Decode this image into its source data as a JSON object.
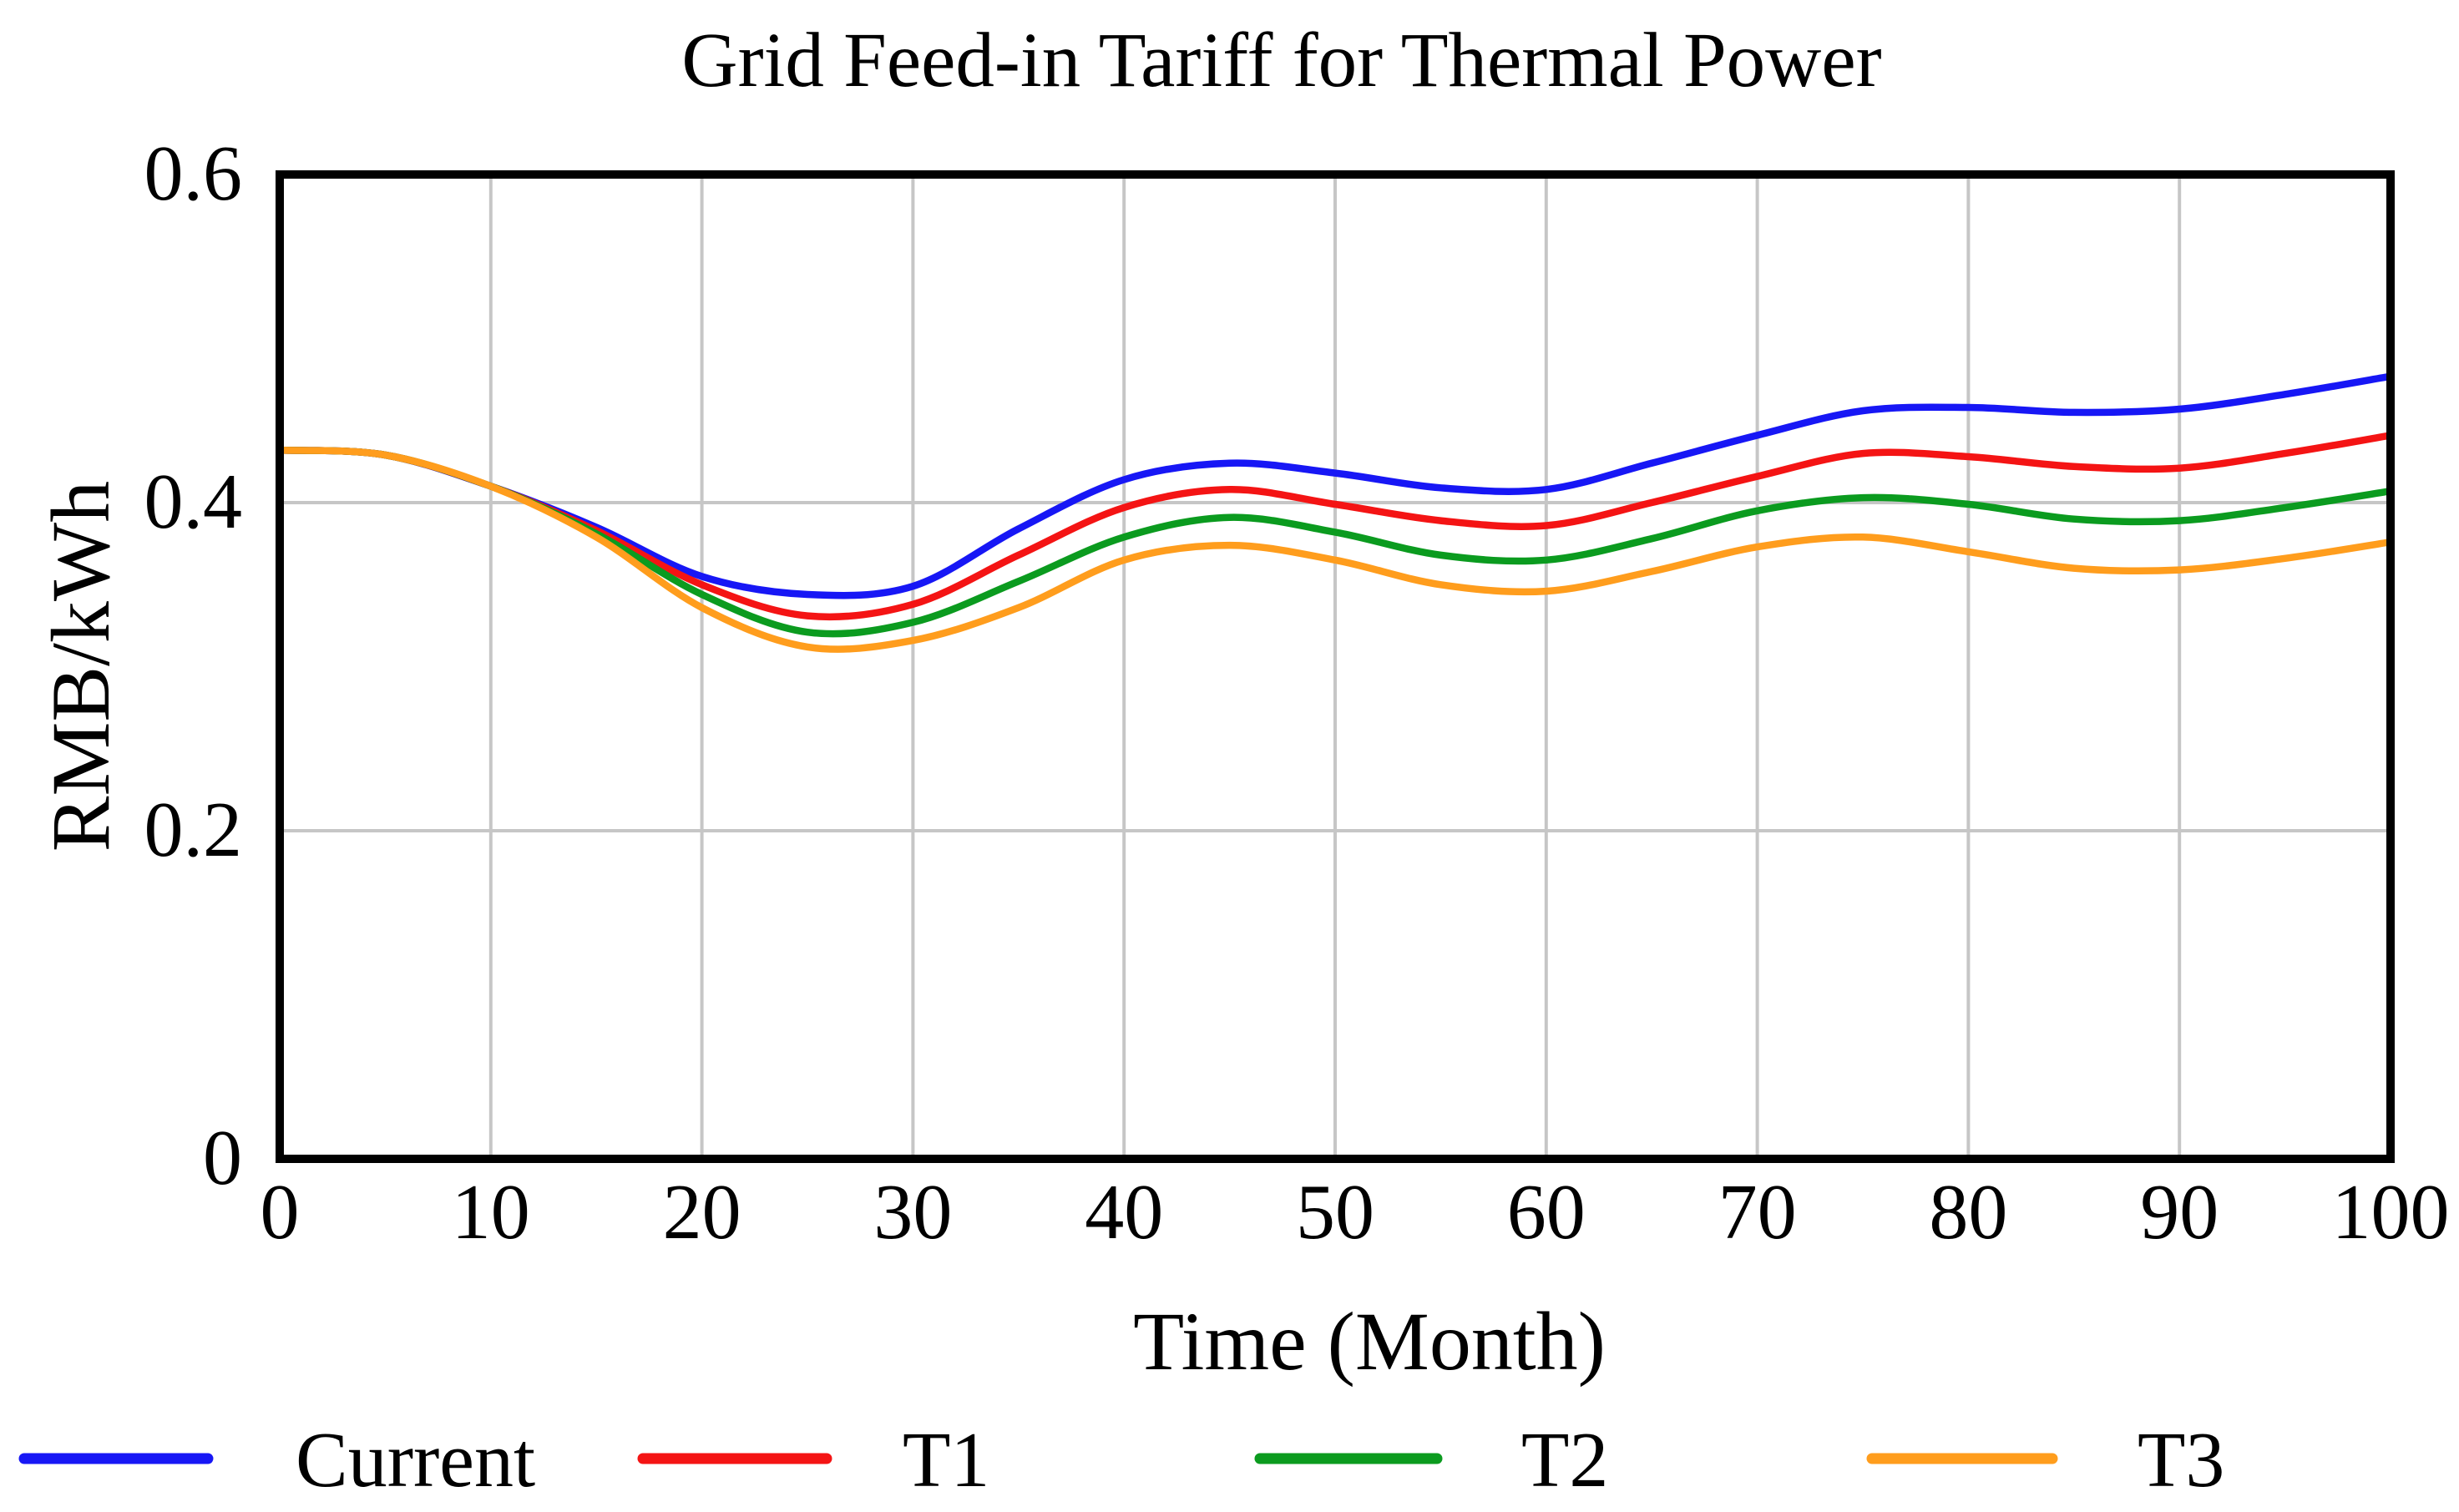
{
  "figure": {
    "background": "#ffffff"
  },
  "chart_data": {
    "type": "line",
    "title": "Grid Feed-in Tariff for Thermal Power",
    "xlabel": "Time (Month)",
    "ylabel": "RMB/kWh",
    "xlim": [
      0,
      100
    ],
    "ylim": [
      0,
      0.6
    ],
    "grid": true,
    "legend_position": "bottom",
    "axis_color": "#000000",
    "grid_color": "#c6c6c6",
    "x_ticks": [
      0,
      10,
      20,
      30,
      40,
      50,
      60,
      70,
      80,
      90,
      100
    ],
    "x_tick_labels": [
      "0",
      "10",
      "20",
      "30",
      "40",
      "50",
      "60",
      "70",
      "80",
      "90",
      "100"
    ],
    "y_ticks": [
      0,
      0.2,
      0.4,
      0.6
    ],
    "y_tick_labels": [
      "0",
      "0.2",
      "0.4",
      "0.6"
    ],
    "x": [
      0,
      5,
      10,
      15,
      20,
      25,
      30,
      35,
      40,
      45,
      50,
      55,
      60,
      65,
      70,
      75,
      80,
      85,
      90,
      95,
      100
    ],
    "series": [
      {
        "name": "Current",
        "color": "#1717f5",
        "values": [
          0.432,
          0.429,
          0.41,
          0.385,
          0.355,
          0.344,
          0.349,
          0.384,
          0.414,
          0.424,
          0.418,
          0.409,
          0.408,
          0.424,
          0.441,
          0.456,
          0.458,
          0.455,
          0.457,
          0.466,
          0.477
        ]
      },
      {
        "name": "T1",
        "color": "#f41414",
        "values": [
          0.432,
          0.429,
          0.41,
          0.383,
          0.35,
          0.331,
          0.338,
          0.368,
          0.397,
          0.408,
          0.399,
          0.389,
          0.386,
          0.4,
          0.416,
          0.43,
          0.428,
          0.422,
          0.421,
          0.43,
          0.441
        ]
      },
      {
        "name": "T2",
        "color": "#0b9b1f",
        "values": [
          0.432,
          0.429,
          0.41,
          0.381,
          0.344,
          0.321,
          0.327,
          0.352,
          0.379,
          0.391,
          0.382,
          0.368,
          0.365,
          0.378,
          0.395,
          0.403,
          0.399,
          0.39,
          0.389,
          0.397,
          0.407
        ]
      },
      {
        "name": "T3",
        "color": "#ff9d1d",
        "values": [
          0.432,
          0.429,
          0.41,
          0.379,
          0.336,
          0.312,
          0.316,
          0.336,
          0.365,
          0.374,
          0.365,
          0.35,
          0.346,
          0.358,
          0.373,
          0.379,
          0.37,
          0.36,
          0.359,
          0.366,
          0.376
        ]
      }
    ]
  }
}
